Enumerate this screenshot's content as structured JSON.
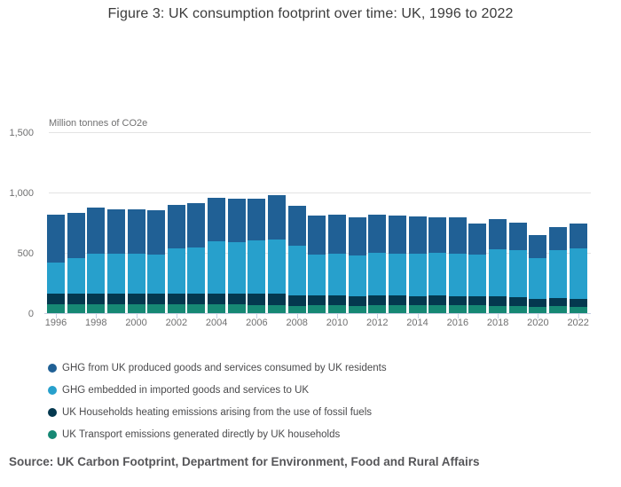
{
  "figure": {
    "title": "Figure 3: UK consumption footprint over time: UK, 1996 to 2022",
    "source": "Source: UK Carbon Footprint, Department for Environment, Food and Rural Affairs"
  },
  "chart_data": {
    "type": "bar",
    "stacked": true,
    "title": "Figure 3: UK consumption footprint over time: UK, 1996 to 2022",
    "unit_label": "Million tonnes of CO2e",
    "xlabel": "",
    "ylabel": "Million tonnes of CO2e",
    "x": [
      1996,
      1997,
      1998,
      1999,
      2000,
      2001,
      2002,
      2003,
      2004,
      2005,
      2006,
      2007,
      2008,
      2009,
      2010,
      2011,
      2012,
      2013,
      2014,
      2015,
      2016,
      2017,
      2018,
      2019,
      2020,
      2021,
      2022
    ],
    "x_tick_years": [
      1996,
      1998,
      2000,
      2002,
      2004,
      2006,
      2008,
      2010,
      2012,
      2014,
      2016,
      2018,
      2020,
      2022
    ],
    "ylim": [
      0,
      1500
    ],
    "y_ticks": [
      {
        "value": 0,
        "label": "0"
      },
      {
        "value": 500,
        "label": "500"
      },
      {
        "value": 1000,
        "label": "1,000"
      },
      {
        "value": 1500,
        "label": "1,500"
      }
    ],
    "grid": "horizontal",
    "legend_position": "bottom-left",
    "note": "series listed top-of-stack first; bars stack bottom-to-top as transport, heating, imported, produced",
    "series": [
      {
        "name": "GHG from UK produced goods and services consumed by UK residents",
        "color": "#206095",
        "values": [
          396,
          372,
          380,
          365,
          365,
          364,
          363,
          369,
          357,
          355,
          345,
          365,
          332,
          319,
          319,
          311,
          317,
          317,
          304,
          297,
          296,
          256,
          244,
          228,
          193,
          196,
          203
        ]
      },
      {
        "name": "GHG embedded in imported goods and services to UK",
        "color": "#27A0CC",
        "values": [
          260,
          294,
          333,
          333,
          333,
          321,
          374,
          379,
          433,
          427,
          443,
          450,
          411,
          343,
          347,
          339,
          355,
          350,
          352,
          355,
          352,
          345,
          391,
          388,
          335,
          394,
          416
        ]
      },
      {
        "name": "UK Households heating emissions arising from the use of fossil fuels",
        "color": "#04384F",
        "values": [
          92,
          92,
          92,
          92,
          92,
          95,
          93,
          95,
          95,
          93,
          93,
          93,
          88,
          80,
          81,
          79,
          81,
          78,
          76,
          80,
          78,
          76,
          79,
          74,
          73,
          69,
          68
        ]
      },
      {
        "name": "UK Transport emissions generated directly by UK households",
        "color": "#168874",
        "values": [
          70,
          70,
          70,
          70,
          70,
          70,
          70,
          70,
          70,
          70,
          67,
          67,
          62,
          65,
          67,
          62,
          64,
          67,
          67,
          65,
          65,
          65,
          62,
          62,
          48,
          57,
          53
        ]
      }
    ]
  }
}
